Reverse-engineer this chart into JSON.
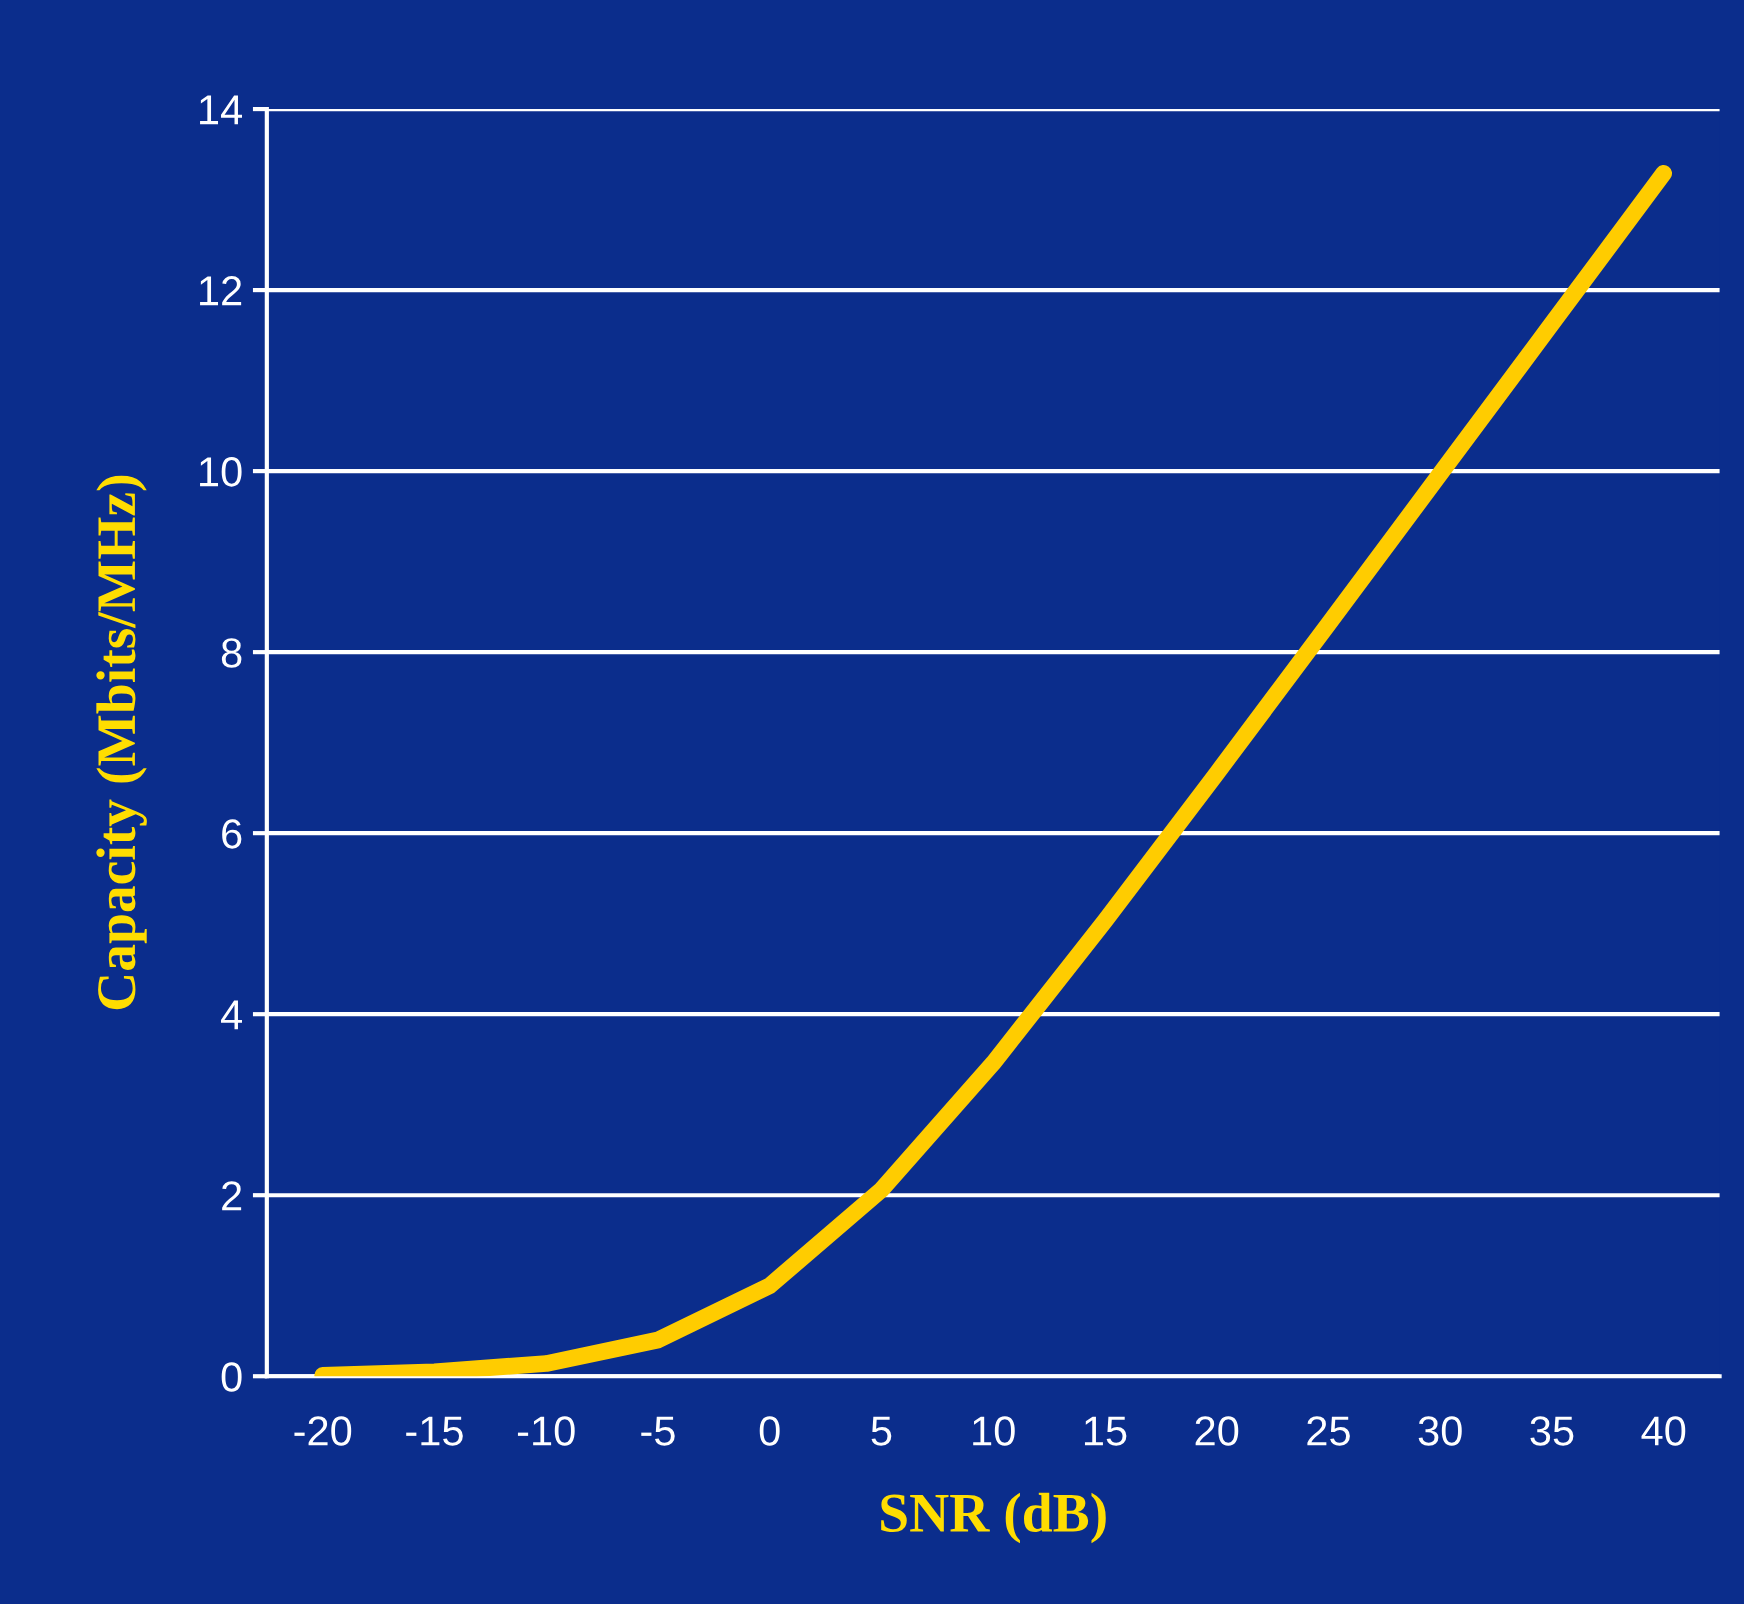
{
  "chart_data": {
    "type": "line",
    "xlabel": "SNR (dB)",
    "ylabel": "Capacity (Mbits/MHz)",
    "categories": [
      "-20",
      "-15",
      "-10",
      "-5",
      "0",
      "5",
      "10",
      "15",
      "20",
      "25",
      "30",
      "35",
      "40"
    ],
    "series": [
      {
        "color": "#ffcc00",
        "values": [
          0.01,
          0.05,
          0.14,
          0.4,
          1.0,
          2.06,
          3.46,
          5.03,
          6.66,
          8.31,
          9.97,
          11.63,
          13.29
        ]
      }
    ],
    "ylim": [
      0,
      14
    ],
    "yticks": [
      0,
      2,
      4,
      6,
      8,
      10,
      12,
      14
    ],
    "grid": "y",
    "marker": "none",
    "line_style": "solid"
  }
}
